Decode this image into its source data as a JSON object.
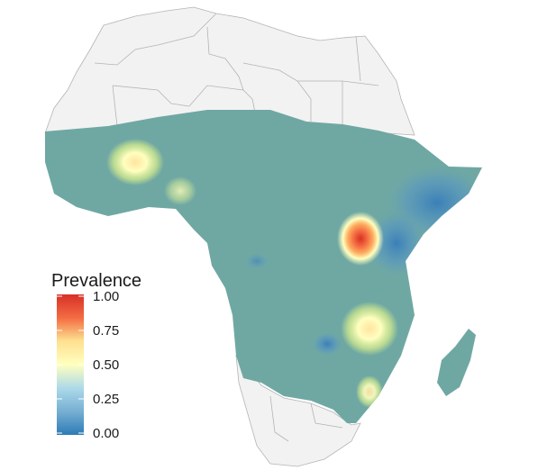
{
  "legend": {
    "title": "Prevalence",
    "ticks": [
      "1.00",
      "0.75",
      "0.50",
      "0.25",
      "0.00"
    ],
    "tick_values": [
      1.0,
      0.75,
      0.5,
      0.25,
      0.0
    ],
    "range": [
      0,
      1
    ],
    "colors": [
      "#2c7bb6",
      "#74add1",
      "#abd9e9",
      "#ffffbf",
      "#fdae61",
      "#f46d43",
      "#d73027"
    ]
  },
  "map": {
    "region": "Africa",
    "base_prevalence_color": "#6fa8a3",
    "land_color": "#f2f2f2",
    "border_color": "#b4b4b4",
    "hotspots": [
      {
        "area": "west-africa-mali",
        "level": 0.5
      },
      {
        "area": "west-africa-burkina",
        "level": 0.35
      },
      {
        "area": "uganda",
        "level": 0.85
      },
      {
        "area": "malawi-mozambique",
        "level": 0.55
      },
      {
        "area": "southern-mozambique",
        "level": 0.45
      },
      {
        "area": "zambia",
        "level": 0.1
      },
      {
        "area": "horn-of-africa",
        "level": 0.08
      }
    ]
  }
}
